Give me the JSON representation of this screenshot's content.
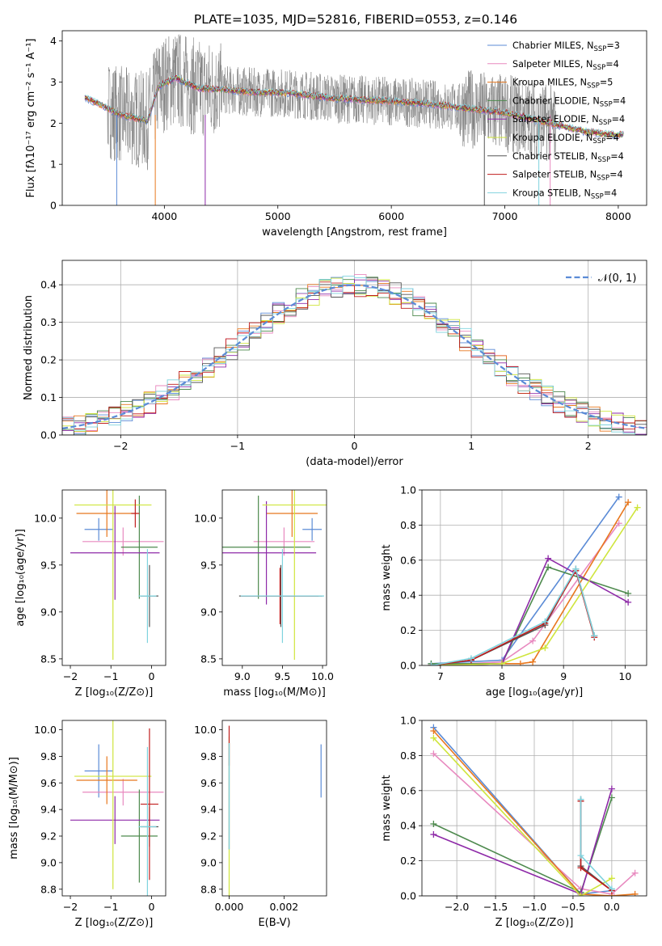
{
  "title": "PLATE=1035, MJD=52816, FIBERID=0553, z=0.146",
  "colors": {
    "chab_miles": "#5b8bd6",
    "salp_miles": "#e889bf",
    "krou_miles": "#e8781e",
    "chab_elod": "#4e8a4e",
    "salp_elod": "#8e2aa8",
    "krou_elod": "#cfe53c",
    "chab_stel": "#555555",
    "salp_stel": "#c01d1d",
    "krou_stel": "#7fd3de",
    "data": "#808080"
  },
  "chart_data": [
    {
      "type": "line",
      "panel": "spectrum",
      "xlabel": "wavelength [Angstrom, rest frame]",
      "ylabel": "Flux [fλ10⁻¹⁷ erg cm⁻² s⁻¹ A⁻¹]",
      "xlim": [
        3100,
        8250
      ],
      "ylim": [
        0,
        4.25
      ],
      "xticks": [
        "4000",
        "5000",
        "6000",
        "7000",
        "8000"
      ],
      "yticks": [
        "0",
        "1",
        "2",
        "3",
        "4"
      ],
      "grid": false,
      "legend_position": "top-right",
      "legend": [
        {
          "name": "Chabrier MILES, N",
          "sub": "SSP",
          "tail": "=3",
          "color_key": "chab_miles"
        },
        {
          "name": "Salpeter MILES, N",
          "sub": "SSP",
          "tail": "=4",
          "color_key": "salp_miles"
        },
        {
          "name": "Kroupa MILES, N",
          "sub": "SSP",
          "tail": "=5",
          "color_key": "krou_miles"
        },
        {
          "name": "Chabrier ELODIE, N",
          "sub": "SSP",
          "tail": "=4",
          "color_key": "chab_elod"
        },
        {
          "name": "Salpeter ELODIE, N",
          "sub": "SSP",
          "tail": "=4",
          "color_key": "salp_elod"
        },
        {
          "name": "Kroupa ELODIE, N",
          "sub": "SSP",
          "tail": "=4",
          "color_key": "krou_elod"
        },
        {
          "name": "Chabrier STELIB, N",
          "sub": "SSP",
          "tail": "=4",
          "color_key": "chab_stel"
        },
        {
          "name": "Salpeter STELIB, N",
          "sub": "SSP",
          "tail": "=4",
          "color_key": "salp_stel"
        },
        {
          "name": "Kroupa STELIB, N",
          "sub": "SSP",
          "tail": "=4",
          "color_key": "krou_stel"
        }
      ],
      "continuum": [
        [
          3300,
          2.62
        ],
        [
          3400,
          2.5
        ],
        [
          3600,
          2.22
        ],
        [
          3700,
          2.15
        ],
        [
          3850,
          2.05
        ],
        [
          3950,
          2.9
        ],
        [
          4100,
          3.1
        ],
        [
          4300,
          2.85
        ],
        [
          4500,
          2.82
        ],
        [
          4800,
          2.75
        ],
        [
          5000,
          2.75
        ],
        [
          5200,
          2.7
        ],
        [
          5500,
          2.6
        ],
        [
          5900,
          2.55
        ],
        [
          6300,
          2.48
        ],
        [
          6700,
          2.35
        ],
        [
          7000,
          2.25
        ],
        [
          7400,
          2.0
        ],
        [
          7700,
          1.8
        ],
        [
          8000,
          1.7
        ],
        [
          8050,
          1.75
        ]
      ],
      "noise_band": {
        "x": [
          3500,
          7450
        ],
        "amplitude_low": 0.25,
        "amplitude_high": 1.2
      }
    },
    {
      "type": "histogram",
      "panel": "residuals",
      "xlabel": "(data-model)/error",
      "ylabel": "Normed distribution",
      "xlim": [
        -2.5,
        2.5
      ],
      "ylim": [
        0,
        0.465
      ],
      "xticks": [
        -2,
        -1,
        0,
        1,
        2
      ],
      "yticks": [
        0.0,
        0.1,
        0.2,
        0.3,
        0.4
      ],
      "xtick_labels": [
        "−2",
        "−1",
        "0",
        "1",
        "2"
      ],
      "ytick_labels": [
        "0.0",
        "0.1",
        "0.2",
        "0.3",
        "0.4"
      ],
      "grid": true,
      "legend_position": "top-right",
      "legend": [
        {
          "name": "𝒩(0, 1)",
          "color": "#5b8bd6",
          "dashed": true
        }
      ],
      "bin_width": 0.1,
      "bin_start": -2.5
    },
    {
      "type": "errorbar",
      "panel": "age-vs-Z",
      "xlabel": "Z [log₁₀(Z/Z⊙)]",
      "ylabel": "age  [log₁₀(age/yr)]",
      "xlim": [
        -2.2,
        0.35
      ],
      "ylim": [
        8.43,
        10.3
      ],
      "xticks": [
        "−2",
        "−1",
        "0"
      ],
      "yticks": [
        "8.5",
        "9.0",
        "9.5",
        "10.0"
      ],
      "points": [
        {
          "c": "chab_miles",
          "x": -1.3,
          "xe": 0.35,
          "y": 9.88,
          "ye": 0.12
        },
        {
          "c": "salp_miles",
          "x": -0.7,
          "xe": 1.0,
          "y": 9.75,
          "ye": 0.15
        },
        {
          "c": "krou_miles",
          "x": -1.1,
          "xe": 0.75,
          "y": 10.05,
          "ye": 0.25
        },
        {
          "c": "chab_elod",
          "x": -0.3,
          "xe": 0.45,
          "y": 9.69,
          "ye": 0.55
        },
        {
          "c": "salp_elod",
          "x": -0.9,
          "xe": 1.1,
          "y": 9.63,
          "ye": 0.5
        },
        {
          "c": "krou_elod",
          "x": -0.95,
          "xe": 0.95,
          "y": 10.14,
          "ye": 1.65
        },
        {
          "c": "chab_stel",
          "x": -0.05,
          "xe": 0.22,
          "y": 9.17,
          "ye": 0.33
        },
        {
          "c": "salp_stel",
          "x": -0.4,
          "xe": 0.1,
          "y": 10.05,
          "ye": 0.15
        },
        {
          "c": "krou_stel",
          "x": -0.1,
          "xe": 0.22,
          "y": 9.17,
          "ye": 0.5
        }
      ]
    },
    {
      "type": "errorbar",
      "panel": "age-vs-mass",
      "xlabel": "mass [log₁₀(M/M⊙)]",
      "ylabel": "",
      "xlim": [
        8.75,
        10.05
      ],
      "ylim": [
        8.43,
        10.3
      ],
      "xticks": [
        "9.0",
        "9.5",
        "10.0"
      ],
      "yticks": [
        "8.5",
        "9.0",
        "9.5",
        "10.0"
      ],
      "points": [
        {
          "c": "chab_miles",
          "x": 9.87,
          "xe": 0.12,
          "y": 9.88,
          "ye": 0.12
        },
        {
          "c": "salp_miles",
          "x": 9.52,
          "xe": 0.38,
          "y": 9.75,
          "ye": 0.15
        },
        {
          "c": "krou_miles",
          "x": 9.62,
          "xe": 0.32,
          "y": 10.05,
          "ye": 0.25
        },
        {
          "c": "chab_elod",
          "x": 9.2,
          "xe": 0.65,
          "y": 9.69,
          "ye": 0.55
        },
        {
          "c": "salp_elod",
          "x": 9.3,
          "xe": 0.62,
          "y": 9.63,
          "ye": 0.55
        },
        {
          "c": "krou_elod",
          "x": 9.65,
          "xe": 0.4,
          "y": 10.14,
          "ye": 1.65
        },
        {
          "c": "chab_stel",
          "x": 9.48,
          "xe": 0.52,
          "y": 9.17,
          "ye": 0.33
        },
        {
          "c": "salp_stel",
          "x": 9.47,
          "xe": 0.48,
          "y": 9.17,
          "ye": 0.3
        },
        {
          "c": "krou_stel",
          "x": 9.5,
          "xe": 0.52,
          "y": 9.17,
          "ye": 0.5
        }
      ]
    },
    {
      "type": "line",
      "panel": "weight-vs-age",
      "xlabel": "age  [log₁₀(age/yr)]",
      "ylabel": "mass weight",
      "xlim": [
        6.7,
        10.35
      ],
      "ylim": [
        0,
        1.0
      ],
      "xticks": [
        7,
        8,
        9,
        10
      ],
      "yticks": [
        0.0,
        0.2,
        0.4,
        0.6,
        0.8,
        1.0
      ],
      "ytick_labels": [
        "0.0",
        "0.2",
        "0.4",
        "0.6",
        "0.8",
        "1.0"
      ],
      "grid": true,
      "series": [
        {
          "c": "chab_miles",
          "pts": [
            [
              6.85,
              0.01
            ],
            [
              8.0,
              0.03
            ],
            [
              9.9,
              0.96
            ]
          ]
        },
        {
          "c": "salp_miles",
          "pts": [
            [
              6.85,
              0.0
            ],
            [
              8.0,
              0.02
            ],
            [
              8.5,
              0.14
            ],
            [
              9.9,
              0.81
            ]
          ]
        },
        {
          "c": "krou_miles",
          "pts": [
            [
              6.85,
              0.0
            ],
            [
              8.0,
              0.01
            ],
            [
              8.3,
              0.01
            ],
            [
              8.5,
              0.02
            ],
            [
              10.05,
              0.93
            ]
          ]
        },
        {
          "c": "chab_elod",
          "pts": [
            [
              6.85,
              0.01
            ],
            [
              8.0,
              0.01
            ],
            [
              8.75,
              0.56
            ],
            [
              10.05,
              0.41
            ]
          ]
        },
        {
          "c": "salp_elod",
          "pts": [
            [
              6.85,
              0.0
            ],
            [
              8.0,
              0.01
            ],
            [
              8.75,
              0.61
            ],
            [
              10.05,
              0.36
            ]
          ]
        },
        {
          "c": "krou_elod",
          "pts": [
            [
              6.85,
              0.0
            ],
            [
              8.0,
              0.01
            ],
            [
              8.7,
              0.1
            ],
            [
              10.2,
              0.9
            ]
          ]
        },
        {
          "c": "chab_stel",
          "pts": [
            [
              6.85,
              0.0
            ],
            [
              7.5,
              0.03
            ],
            [
              8.7,
              0.23
            ],
            [
              9.2,
              0.55
            ],
            [
              9.5,
              0.17
            ]
          ]
        },
        {
          "c": "salp_stel",
          "pts": [
            [
              6.85,
              0.0
            ],
            [
              7.5,
              0.03
            ],
            [
              8.7,
              0.24
            ],
            [
              9.2,
              0.54
            ],
            [
              9.5,
              0.16
            ]
          ]
        },
        {
          "c": "krou_stel",
          "pts": [
            [
              6.85,
              0.0
            ],
            [
              7.5,
              0.04
            ],
            [
              8.7,
              0.25
            ],
            [
              9.2,
              0.55
            ],
            [
              9.5,
              0.17
            ]
          ]
        }
      ]
    },
    {
      "type": "errorbar",
      "panel": "mass-vs-Z",
      "xlabel": "Z [log₁₀(Z/Z⊙)]",
      "ylabel": "mass [log₁₀(M/M⊙)]",
      "xlim": [
        -2.2,
        0.35
      ],
      "ylim": [
        8.75,
        10.07
      ],
      "xticks": [
        "−2",
        "−1",
        "0"
      ],
      "yticks": [
        "8.8",
        "9.0",
        "9.2",
        "9.4",
        "9.6",
        "9.8",
        "10.0"
      ],
      "points": [
        {
          "c": "chab_miles",
          "x": -1.3,
          "xe": 0.35,
          "y": 9.69,
          "ye": 0.2
        },
        {
          "c": "salp_miles",
          "x": -0.7,
          "xe": 1.0,
          "y": 9.53,
          "ye": 0.1
        },
        {
          "c": "krou_miles",
          "x": -1.1,
          "xe": 0.75,
          "y": 9.62,
          "ye": 0.18
        },
        {
          "c": "chab_elod",
          "x": -0.3,
          "xe": 0.45,
          "y": 9.2,
          "ye": 0.35
        },
        {
          "c": "salp_elod",
          "x": -0.9,
          "xe": 1.1,
          "y": 9.32,
          "ye": 0.18
        },
        {
          "c": "krou_elod",
          "x": -0.95,
          "xe": 0.95,
          "y": 9.65,
          "ye": 0.85
        },
        {
          "c": "chab_stel",
          "x": -0.05,
          "xe": 0.22,
          "y": 9.27,
          "ye": 0.15
        },
        {
          "c": "salp_stel",
          "x": -0.05,
          "xe": 0.22,
          "y": 9.44,
          "ye": 0.57
        },
        {
          "c": "krou_stel",
          "x": -0.1,
          "xe": 0.22,
          "y": 9.27,
          "ye": 0.6
        }
      ]
    },
    {
      "type": "errorbar",
      "panel": "mass-vs-EBV",
      "xlabel": "E(B-V)",
      "ylabel": "",
      "xlim": [
        -0.00025,
        0.00355
      ],
      "ylim": [
        8.75,
        10.07
      ],
      "xticks": [
        "0.000",
        "0.002"
      ],
      "xtick_values": [
        0,
        0.002
      ],
      "yticks": [
        "8.8",
        "9.0",
        "9.2",
        "9.4",
        "9.6",
        "9.8",
        "10.0"
      ],
      "points": [
        {
          "c": "chab_miles",
          "x": 0.00335,
          "y": 9.69,
          "ye": 0.2
        },
        {
          "c": "krou_elod",
          "x": 0.0,
          "y": 9.35,
          "ye": 0.6
        },
        {
          "c": "chab_stel",
          "x": 0.0,
          "y": 9.5,
          "ye": 0.4
        },
        {
          "c": "salp_stel",
          "x": 0.0,
          "y": 9.88,
          "ye": 0.15
        },
        {
          "c": "krou_stel",
          "x": 0.0,
          "y": 9.5,
          "ye": 0.4
        }
      ]
    },
    {
      "type": "line",
      "panel": "weight-vs-Z",
      "xlabel": "Z [log₁₀(Z/Z⊙)]",
      "ylabel": "mass weight",
      "xlim": [
        -2.45,
        0.45
      ],
      "ylim": [
        0,
        1.0
      ],
      "xticks": [
        -2.0,
        -1.5,
        -1.0,
        -0.5,
        0.0
      ],
      "xtick_labels": [
        "−2.0",
        "−1.5",
        "−1.0",
        "−0.5",
        "0.0"
      ],
      "yticks": [
        0.0,
        0.2,
        0.4,
        0.6,
        0.8,
        1.0
      ],
      "ytick_labels": [
        "0.0",
        "0.2",
        "0.4",
        "0.6",
        "0.8",
        "1.0"
      ],
      "grid": true,
      "series": [
        {
          "c": "chab_miles",
          "pts": [
            [
              -2.3,
              0.96
            ],
            [
              -0.4,
              0.01
            ],
            [
              0.0,
              0.03
            ]
          ]
        },
        {
          "c": "salp_miles",
          "pts": [
            [
              -2.3,
              0.81
            ],
            [
              -0.4,
              0.04
            ],
            [
              0.0,
              0.01
            ],
            [
              0.3,
              0.13
            ]
          ]
        },
        {
          "c": "krou_miles",
          "pts": [
            [
              -2.3,
              0.94
            ],
            [
              -0.4,
              0.01
            ],
            [
              0.0,
              0.0
            ],
            [
              0.3,
              0.01
            ]
          ]
        },
        {
          "c": "chab_elod",
          "pts": [
            [
              -2.3,
              0.41
            ],
            [
              -0.4,
              0.02
            ],
            [
              0.0,
              0.56
            ]
          ]
        },
        {
          "c": "salp_elod",
          "pts": [
            [
              -2.3,
              0.35
            ],
            [
              -0.4,
              0.01
            ],
            [
              0.0,
              0.61
            ]
          ]
        },
        {
          "c": "krou_elod",
          "pts": [
            [
              -2.3,
              0.9
            ],
            [
              -0.4,
              0.0
            ],
            [
              0.0,
              0.1
            ]
          ]
        },
        {
          "c": "chab_stel",
          "pts": [
            [
              -0.4,
              0.55
            ],
            [
              -0.4,
              0.17
            ],
            [
              0.0,
              0.03
            ]
          ]
        },
        {
          "c": "salp_stel",
          "pts": [
            [
              -0.4,
              0.54
            ],
            [
              -0.4,
              0.16
            ],
            [
              0.0,
              0.03
            ]
          ]
        },
        {
          "c": "krou_stel",
          "pts": [
            [
              -0.4,
              0.55
            ],
            [
              -0.4,
              0.23
            ],
            [
              0.0,
              0.04
            ]
          ]
        }
      ]
    }
  ]
}
